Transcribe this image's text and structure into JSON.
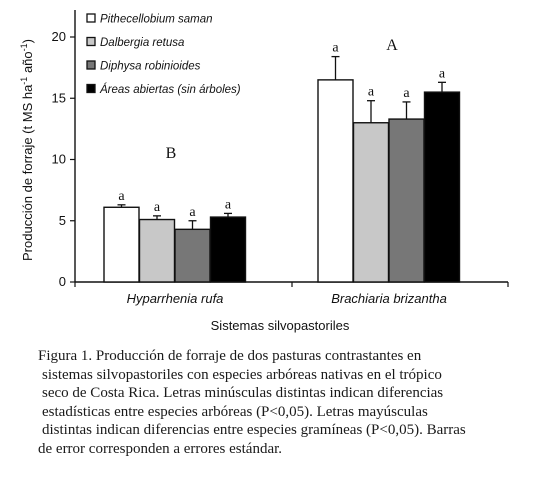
{
  "chart_data": {
    "type": "bar",
    "categories": [
      "Hyparrhenia rufa",
      "Brachiaria brizantha"
    ],
    "series": [
      {
        "name": "Pithecellobium  saman",
        "values": [
          6.1,
          16.5
        ],
        "errors": [
          0.2,
          1.9
        ],
        "letters": [
          "a",
          "a"
        ],
        "color": "#ffffff"
      },
      {
        "name": "Dalbergia retusa",
        "values": [
          5.1,
          13.0
        ],
        "errors": [
          0.3,
          1.8
        ],
        "letters": [
          "a",
          "a"
        ],
        "color": "#c8c8c8"
      },
      {
        "name": "Diphysa robinioides",
        "values": [
          4.3,
          13.3
        ],
        "errors": [
          0.7,
          1.4
        ],
        "letters": [
          "a",
          "a"
        ],
        "color": "#777777"
      },
      {
        "name": "Áreas abiertas  (sin árboles)",
        "values": [
          5.3,
          15.5
        ],
        "errors": [
          0.3,
          0.8
        ],
        "letters": [
          "a",
          "a"
        ],
        "color": "#000000"
      }
    ],
    "group_letters": [
      "B",
      "A"
    ],
    "xlabel": "Sistemas silvopastoriles",
    "ylabel": "Producción de forraje (t MS ha",
    "ylabel_sup1": "-1",
    "ylabel_mid": " año",
    "ylabel_sup2": "-1",
    "ylabel_end": ")",
    "yticks": [
      0,
      5,
      10,
      15,
      20
    ],
    "ylim": [
      0,
      22
    ],
    "legend_position": "top-left",
    "grid": false
  },
  "caption": [
    "Figura 1. Producción de forraje de dos pasturas contrastantes en",
    "sistemas  silvopastoriles con especies arbóreas nativas en el trópico",
    "seco de Costa Rica. Letras minúsculas distintas  indican diferencias",
    "estadísticas entre especies arbóreas (P<0,05). Letras mayúsculas",
    "distintas indican diferencias entre especies gramíneas (P<0,05). Barras",
    "de error corresponden a errores  estándar."
  ]
}
